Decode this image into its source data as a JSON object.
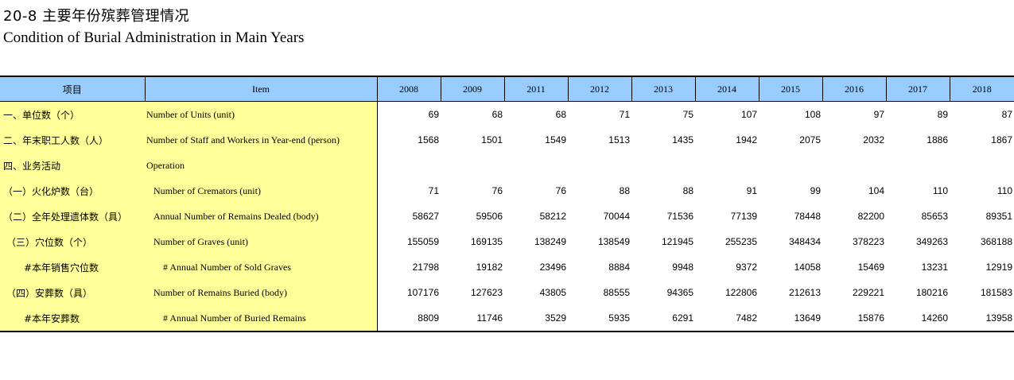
{
  "title_cn": "20-8 主要年份殡葬管理情况",
  "title_en": "Condition of Burial Administration in Main Years",
  "header": {
    "item_cn": "项目",
    "item_en": "Item",
    "years": [
      "2008",
      "2009",
      "2011",
      "2012",
      "2013",
      "2014",
      "2015",
      "2016",
      "2017",
      "2018"
    ]
  },
  "rows": [
    {
      "cn": "一、单位数（个）",
      "en": "Number of Units (unit)",
      "values": [
        "69",
        "68",
        "68",
        "71",
        "75",
        "107",
        "108",
        "97",
        "89",
        "87"
      ]
    },
    {
      "cn": "二、年末职工人数（人）",
      "en": "Number of Staff and Workers in Year-end (person)",
      "values": [
        "1568",
        "1501",
        "1549",
        "1513",
        "1435",
        "1942",
        "2075",
        "2032",
        "1886",
        "1867"
      ]
    },
    {
      "cn": "四、业务活动",
      "en": "Operation",
      "values": [
        "",
        "",
        "",
        "",
        "",
        "",
        "",
        "",
        "",
        ""
      ]
    },
    {
      "cn": "（一）火化炉数（台）",
      "en": "Number of Cremators (unit)",
      "values": [
        "71",
        "76",
        "76",
        "88",
        "88",
        "91",
        "99",
        "104",
        "110",
        "110"
      ]
    },
    {
      "cn": "（二）全年处理遗体数（具）",
      "en": "Annual Number of Remains Dealed (body)",
      "values": [
        "58627",
        "59506",
        "58212",
        "70044",
        "71536",
        "77139",
        "78448",
        "82200",
        "85653",
        "89351"
      ]
    },
    {
      "cn": "（三）穴位数（个）",
      "en": "Number of Graves (unit)",
      "values": [
        "155059",
        "169135",
        "138249",
        "138549",
        "121945",
        "255235",
        "348434",
        "378223",
        "349263",
        "368188"
      ]
    },
    {
      "cn": "#本年销售穴位数",
      "en": "# Annual Number of Sold Graves",
      "values": [
        "21798",
        "19182",
        "23496",
        "8884",
        "9948",
        "9372",
        "14058",
        "15469",
        "13231",
        "12919"
      ]
    },
    {
      "cn": "（四）安葬数（具）",
      "en": "Number of Remains Buried (body)",
      "values": [
        "107176",
        "127623",
        "43805",
        "88555",
        "94365",
        "122806",
        "212613",
        "229221",
        "180216",
        "181583"
      ]
    },
    {
      "cn": "#本年安葬数",
      "en": "# Annual Number of Buried Remains",
      "values": [
        "8809",
        "11746",
        "3529",
        "5935",
        "6291",
        "7482",
        "13649",
        "15876",
        "14260",
        "13958"
      ]
    }
  ]
}
